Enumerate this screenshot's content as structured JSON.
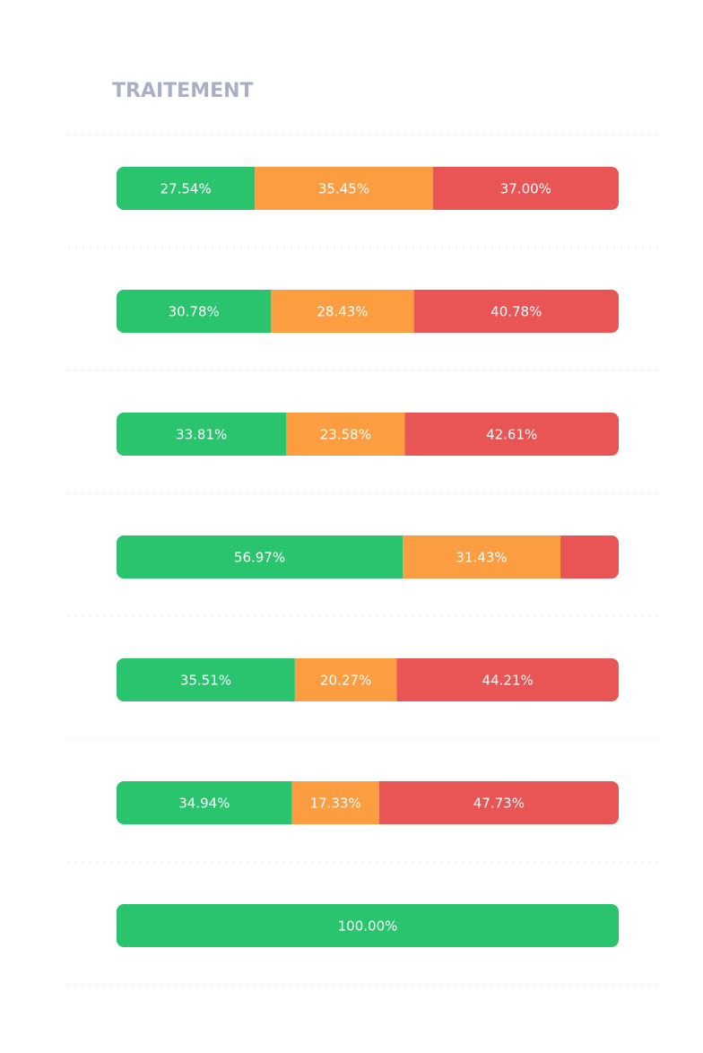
{
  "chart_data": {
    "type": "stacked-bar",
    "title": "TRAITEMENT",
    "orientation": "horizontal",
    "categories": [
      null,
      null,
      null,
      null,
      null,
      null,
      null
    ],
    "xlim": [
      0,
      100
    ],
    "series": [
      {
        "color": "#2bc46e",
        "values": [
          27.54,
          30.78,
          33.81,
          56.97,
          35.51,
          34.94,
          100.0
        ],
        "value_labels": [
          "27.54%",
          "30.78%",
          "33.81%",
          "56.97%",
          "35.51%",
          "34.94%",
          "100.00%"
        ]
      },
      {
        "color": "#fc9d42",
        "values": [
          35.45,
          28.43,
          23.58,
          31.43,
          20.27,
          17.33,
          null
        ],
        "value_labels": [
          "35.45%",
          "28.43%",
          "23.58%",
          "31.43%",
          "20.27%",
          "17.33%",
          null
        ]
      },
      {
        "color": "#e95555",
        "values": [
          37.0,
          40.78,
          42.61,
          11.6,
          44.21,
          47.73,
          null
        ],
        "value_labels": [
          "37.00%",
          "40.78%",
          "42.61%",
          null,
          "44.21%",
          "47.73%",
          null
        ]
      }
    ]
  }
}
